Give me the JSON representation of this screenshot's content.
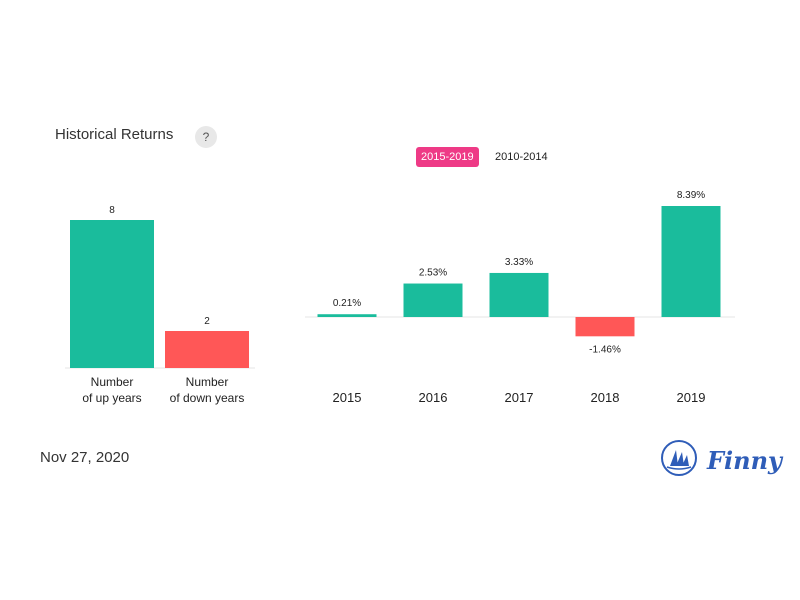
{
  "header": {
    "title": "Historical Returns",
    "help": "?"
  },
  "range_selector": {
    "active": "2015-2019",
    "inactive": "2010-2014"
  },
  "footer": {
    "date": "Nov 27, 2020",
    "brand": "Finny"
  },
  "colors": {
    "positive": "#1abc9c",
    "negative": "#ff5757",
    "accent": "#ee3a86",
    "brand": "#2f5db8"
  },
  "chart_data": [
    {
      "type": "bar",
      "categories": [
        "Number\nof up years",
        "Number\nof down years"
      ],
      "values": [
        8,
        2
      ],
      "data_labels": [
        "8",
        "2"
      ],
      "title": "",
      "xlabel": "",
      "ylabel": ""
    },
    {
      "type": "bar",
      "categories": [
        "2015",
        "2016",
        "2017",
        "2018",
        "2019"
      ],
      "values": [
        0.21,
        2.53,
        3.33,
        -1.46,
        8.39
      ],
      "data_labels": [
        "0.21%",
        "2.53%",
        "3.33%",
        "-1.46%",
        "8.39%"
      ],
      "title": "",
      "xlabel": "",
      "ylabel": ""
    }
  ]
}
